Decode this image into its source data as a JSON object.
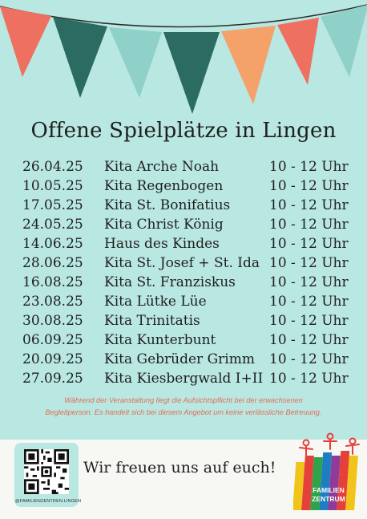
{
  "title": "Offene Spielplätze in Lingen",
  "schedule": [
    {
      "date": "26.04.25",
      "place": "Kita Arche Noah",
      "time": "10 - 12 Uhr"
    },
    {
      "date": "10.05.25",
      "place": "Kita Regenbogen",
      "time": "10 - 12 Uhr"
    },
    {
      "date": "17.05.25",
      "place": "Kita St. Bonifatius",
      "time": "10 - 12 Uhr"
    },
    {
      "date": "24.05.25",
      "place": "Kita Christ König",
      "time": "10 - 12 Uhr"
    },
    {
      "date": "14.06.25",
      "place": "Haus des Kindes",
      "time": "10 - 12 Uhr"
    },
    {
      "date": "28.06.25",
      "place": "Kita St. Josef + St. Ida",
      "time": "10 - 12 Uhr"
    },
    {
      "date": "16.08.25",
      "place": "Kita St. Franziskus",
      "time": "10 - 12 Uhr"
    },
    {
      "date": "23.08.25",
      "place": "Kita Lütke Lüe",
      "time": "10 - 12 Uhr"
    },
    {
      "date": "30.08.25",
      "place": "Kita Trinitatis",
      "time": "10 - 12 Uhr"
    },
    {
      "date": "06.09.25",
      "place": "Kita Kunterbunt",
      "time": "10 - 12 Uhr"
    },
    {
      "date": "20.09.25",
      "place": "Kita Gebrüder Grimm",
      "time": "10 - 12 Uhr"
    },
    {
      "date": "27.09.25",
      "place": "Kita Kiesbergwald I+II",
      "time": "10 - 12 Uhr"
    }
  ],
  "note_line1": "Während der Veranstaltung liegt die Aufsichtspflicht bei der erwachsenen",
  "note_line2": "Begleitperson. Es handelt sich bei diesem Angebot um keine verlässliche Betreuung.",
  "footer": {
    "qr_caption": "@FAMILIENZENTREN.LINGEN",
    "welcome": "Wir freuen uns auf euch!",
    "logo_text_line1": "FAMILIEN",
    "logo_text_line2": "ZENTRUM"
  },
  "colors": {
    "background": "#b9e7e2",
    "flag_coral": "#ee7060",
    "flag_teal_dark": "#2b6b62",
    "flag_mint": "#8fd1c8",
    "flag_orange": "#f4a16a",
    "note_text": "#e46d55"
  }
}
